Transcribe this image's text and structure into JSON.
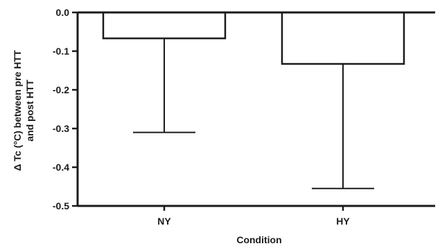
{
  "chart_data": {
    "type": "bar",
    "categories": [
      "NY",
      "HY"
    ],
    "values": [
      -0.067,
      -0.133
    ],
    "error_bars_lower": [
      -0.31,
      -0.455
    ],
    "ylim": [
      -0.5,
      0.0
    ],
    "yticks": [
      "0.0",
      "-0.1",
      "-0.2",
      "-0.3",
      "-0.4",
      "-0.5"
    ],
    "xlabel": "Condition",
    "ylabel_lines": [
      "Δ Tc (°C) between pre HTT",
      "and post HTT"
    ],
    "grid": false,
    "bar_fill": "#ffffff",
    "stroke_color": "#1a1a1a"
  }
}
